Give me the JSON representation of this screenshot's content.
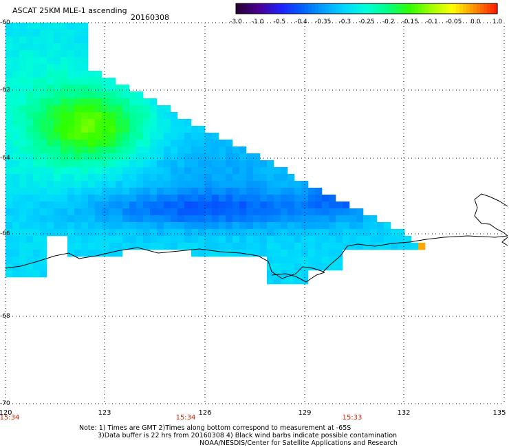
{
  "header": {
    "title": "ASCAT 25KM MLE-1 ascending",
    "date": "20160308"
  },
  "colorbar": {
    "labels": [
      "-3.0",
      "-1.0",
      "-0.5",
      "-0.4",
      "-0.35",
      "-0.3",
      "-0.25",
      "-0.2",
      "-0.15",
      "-0.1",
      "-0.05",
      "0.0",
      "1.0"
    ],
    "colors": [
      "#2a0036",
      "#4a0094",
      "#2020ff",
      "#0060ff",
      "#00a0ff",
      "#00d8ff",
      "#00ffd8",
      "#00ff80",
      "#30ff00",
      "#a0ff00",
      "#ffff00",
      "#ff9000",
      "#ff2000"
    ]
  },
  "axes": {
    "lat_labels": [
      "-60",
      "-62",
      "-64",
      "-66",
      "-68",
      "-70"
    ],
    "lon_labels": [
      "120",
      "123",
      "126",
      "129",
      "132",
      "135"
    ]
  },
  "time_labels": [
    "15:34",
    "15:34",
    "15:33"
  ],
  "notes": [
    "Note: 1) Times are GMT 2)Times along bottom correspond to measurement at -65S",
    "3)Data buffer is 22 hrs from 20160308 4) Black wind barbs indicate possible contamination",
    "NOAA/NESDIS/Center for Satellite Applications and Research"
  ]
}
